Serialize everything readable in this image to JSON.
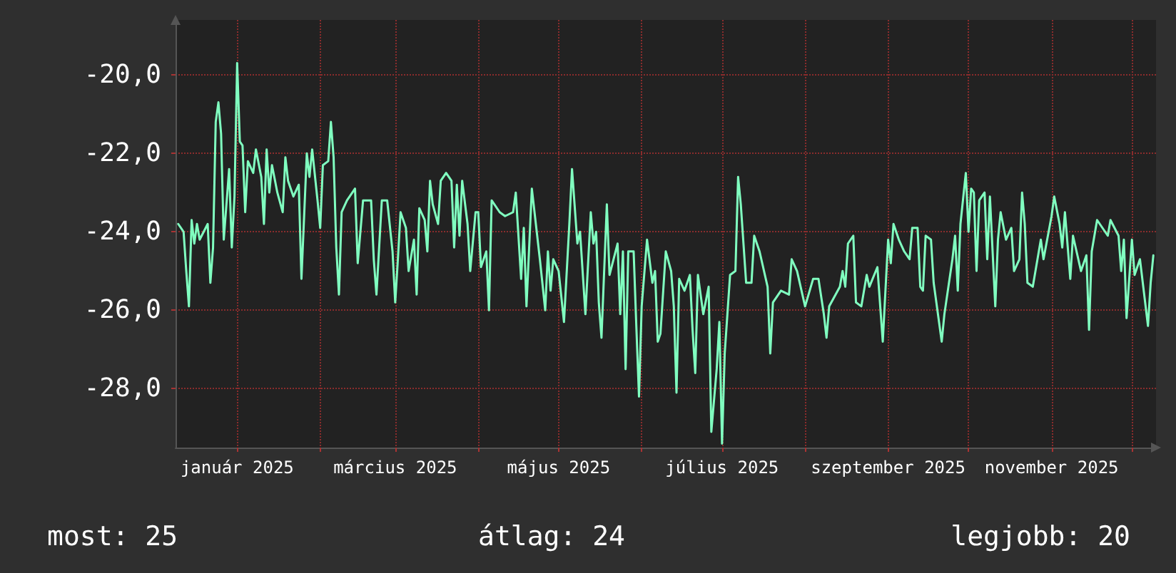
{
  "chart_data": {
    "type": "line",
    "x": [
      "2024-12-10",
      "2024-12-12",
      "2024-12-13",
      "2024-12-14",
      "2024-12-15",
      "2024-12-16",
      "2024-12-17",
      "2024-12-18",
      "2024-12-21",
      "2024-12-22",
      "2024-12-23",
      "2024-12-24",
      "2024-12-25",
      "2024-12-26",
      "2024-12-27",
      "2024-12-29",
      "2024-12-30",
      "2024-12-31",
      "2025-01-01",
      "2025-01-02",
      "2025-01-03",
      "2025-01-04",
      "2025-01-05",
      "2025-01-07",
      "2025-01-08",
      "2025-01-10",
      "2025-01-11",
      "2025-01-12",
      "2025-01-13",
      "2025-01-14",
      "2025-01-16",
      "2025-01-18",
      "2025-01-19",
      "2025-01-20",
      "2025-01-22",
      "2025-01-24",
      "2025-01-25",
      "2025-01-27",
      "2025-01-28",
      "2025-01-29",
      "2025-01-31",
      "2025-02-01",
      "2025-02-02",
      "2025-02-04",
      "2025-02-05",
      "2025-02-06",
      "2025-02-07",
      "2025-02-08",
      "2025-02-09",
      "2025-02-11",
      "2025-02-14",
      "2025-02-15",
      "2025-02-17",
      "2025-02-20",
      "2025-02-21",
      "2025-02-22",
      "2025-02-24",
      "2025-02-26",
      "2025-02-28",
      "2025-03-01",
      "2025-03-02",
      "2025-03-03",
      "2025-03-05",
      "2025-03-06",
      "2025-03-08",
      "2025-03-09",
      "2025-03-10",
      "2025-03-12",
      "2025-03-13",
      "2025-03-14",
      "2025-03-15",
      "2025-03-17",
      "2025-03-18",
      "2025-03-20",
      "2025-03-22",
      "2025-03-23",
      "2025-03-24",
      "2025-03-25",
      "2025-03-26",
      "2025-03-28",
      "2025-03-29",
      "2025-03-31",
      "2025-04-01",
      "2025-04-02",
      "2025-04-04",
      "2025-04-05",
      "2025-04-06",
      "2025-04-09",
      "2025-04-11",
      "2025-04-14",
      "2025-04-15",
      "2025-04-17",
      "2025-04-18",
      "2025-04-19",
      "2025-04-21",
      "2025-04-24",
      "2025-04-26",
      "2025-04-27",
      "2025-04-28",
      "2025-04-29",
      "2025-05-01",
      "2025-05-03",
      "2025-05-05",
      "2025-05-06",
      "2025-05-08",
      "2025-05-09",
      "2025-05-11",
      "2025-05-13",
      "2025-05-14",
      "2025-05-15",
      "2025-05-16",
      "2025-05-17",
      "2025-05-19",
      "2025-05-20",
      "2025-05-23",
      "2025-05-24",
      "2025-05-25",
      "2025-05-26",
      "2025-05-27",
      "2025-05-29",
      "2025-05-30",
      "2025-05-31",
      "2025-06-01",
      "2025-06-03",
      "2025-06-05",
      "2025-06-06",
      "2025-06-07",
      "2025-06-08",
      "2025-06-10",
      "2025-06-12",
      "2025-06-13",
      "2025-06-14",
      "2025-06-15",
      "2025-06-17",
      "2025-06-19",
      "2025-06-20",
      "2025-06-21",
      "2025-06-22",
      "2025-06-24",
      "2025-06-26",
      "2025-06-27",
      "2025-06-29",
      "2025-06-30",
      "2025-07-01",
      "2025-07-02",
      "2025-07-03",
      "2025-07-04",
      "2025-07-06",
      "2025-07-07",
      "2025-07-08",
      "2025-07-10",
      "2025-07-12",
      "2025-07-13",
      "2025-07-15",
      "2025-07-18",
      "2025-07-19",
      "2025-07-20",
      "2025-07-23",
      "2025-07-26",
      "2025-07-27",
      "2025-07-29",
      "2025-08-01",
      "2025-08-04",
      "2025-08-06",
      "2025-08-08",
      "2025-08-09",
      "2025-08-10",
      "2025-08-14",
      "2025-08-15",
      "2025-08-16",
      "2025-08-17",
      "2025-08-19",
      "2025-08-20",
      "2025-08-22",
      "2025-08-24",
      "2025-08-25",
      "2025-08-28",
      "2025-08-30",
      "2025-09-01",
      "2025-09-02",
      "2025-09-03",
      "2025-09-05",
      "2025-09-07",
      "2025-09-09",
      "2025-09-10",
      "2025-09-12",
      "2025-09-13",
      "2025-09-14",
      "2025-09-15",
      "2025-09-17",
      "2025-09-18",
      "2025-09-21",
      "2025-09-22",
      "2025-09-25",
      "2025-09-26",
      "2025-09-27",
      "2025-09-28",
      "2025-09-30",
      "2025-10-01",
      "2025-10-02",
      "2025-10-03",
      "2025-10-04",
      "2025-10-05",
      "2025-10-07",
      "2025-10-08",
      "2025-10-09",
      "2025-10-11",
      "2025-10-12",
      "2025-10-13",
      "2025-10-15",
      "2025-10-17",
      "2025-10-18",
      "2025-10-20",
      "2025-10-21",
      "2025-10-22",
      "2025-10-23",
      "2025-10-25",
      "2025-10-28",
      "2025-10-29",
      "2025-11-01",
      "2025-11-02",
      "2025-11-04",
      "2025-11-05",
      "2025-11-06",
      "2025-11-08",
      "2025-11-09",
      "2025-11-12",
      "2025-11-14",
      "2025-11-15",
      "2025-11-16",
      "2025-11-18",
      "2025-11-22",
      "2025-11-23",
      "2025-11-26",
      "2025-11-27",
      "2025-11-28",
      "2025-11-29",
      "2025-12-01",
      "2025-12-02",
      "2025-12-04",
      "2025-12-07",
      "2025-12-08",
      "2025-12-09"
    ],
    "series": [
      {
        "color": "#80ffc0",
        "values": [
          -23.8,
          -24.0,
          -25.0,
          -25.9,
          -23.7,
          -24.3,
          -23.8,
          -24.2,
          -23.8,
          -25.3,
          -24.4,
          -21.2,
          -20.7,
          -21.5,
          -24.2,
          -22.4,
          -24.4,
          -23.1,
          -19.7,
          -21.7,
          -21.8,
          -23.5,
          -22.2,
          -22.5,
          -21.9,
          -22.6,
          -23.8,
          -21.9,
          -23.0,
          -22.3,
          -23.0,
          -23.5,
          -22.1,
          -22.7,
          -23.1,
          -22.8,
          -25.2,
          -22.0,
          -22.6,
          -21.9,
          -23.2,
          -23.9,
          -22.3,
          -22.2,
          -21.2,
          -22.1,
          -24.4,
          -25.6,
          -23.5,
          -23.2,
          -22.9,
          -24.8,
          -23.2,
          -23.2,
          -24.7,
          -25.6,
          -23.2,
          -23.2,
          -24.5,
          -25.8,
          -24.7,
          -23.5,
          -23.9,
          -25.0,
          -24.2,
          -25.6,
          -23.4,
          -23.7,
          -24.5,
          -22.7,
          -23.3,
          -23.8,
          -22.7,
          -22.5,
          -22.7,
          -24.4,
          -22.8,
          -24.1,
          -22.7,
          -23.8,
          -25.0,
          -23.5,
          -23.5,
          -24.9,
          -24.5,
          -26.0,
          -23.2,
          -23.5,
          -23.6,
          -23.5,
          -23.0,
          -25.2,
          -23.9,
          -25.9,
          -22.9,
          -24.7,
          -26.0,
          -24.5,
          -25.5,
          -24.7,
          -25.0,
          -26.3,
          -23.8,
          -22.4,
          -24.3,
          -24.0,
          -26.1,
          -23.5,
          -24.3,
          -24.0,
          -25.8,
          -26.7,
          -23.3,
          -25.1,
          -24.3,
          -26.1,
          -24.5,
          -27.5,
          -24.5,
          -24.5,
          -26.4,
          -28.2,
          -25.9,
          -24.2,
          -25.3,
          -25.0,
          -26.8,
          -26.6,
          -24.5,
          -25.0,
          -25.9,
          -28.1,
          -25.2,
          -25.5,
          -25.1,
          -26.5,
          -27.6,
          -25.1,
          -26.1,
          -25.4,
          -29.1,
          -27.5,
          -26.3,
          -29.4,
          -27.1,
          -26.1,
          -25.1,
          -25.0,
          -22.6,
          -23.3,
          -25.3,
          -25.3,
          -24.1,
          -24.5,
          -25.4,
          -27.1,
          -25.8,
          -25.5,
          -25.6,
          -24.7,
          -25.0,
          -25.9,
          -25.2,
          -25.2,
          -26.1,
          -26.7,
          -25.9,
          -25.4,
          -25.0,
          -25.4,
          -24.3,
          -24.1,
          -25.8,
          -25.9,
          -25.1,
          -25.4,
          -24.9,
          -26.8,
          -24.2,
          -24.8,
          -23.8,
          -24.2,
          -24.5,
          -24.7,
          -23.9,
          -23.9,
          -25.4,
          -25.5,
          -24.1,
          -24.2,
          -25.3,
          -26.8,
          -26.1,
          -24.7,
          -24.1,
          -25.5,
          -23.8,
          -22.5,
          -24.0,
          -22.9,
          -23.0,
          -25.0,
          -23.2,
          -23.0,
          -24.7,
          -23.1,
          -25.9,
          -24.2,
          -23.5,
          -24.2,
          -23.9,
          -25.0,
          -24.7,
          -23.0,
          -23.8,
          -25.3,
          -25.4,
          -24.2,
          -24.7,
          -23.6,
          -23.1,
          -23.8,
          -24.4,
          -23.5,
          -25.2,
          -24.1,
          -25.0,
          -24.6,
          -26.5,
          -24.5,
          -23.7,
          -24.1,
          -23.7,
          -24.1,
          -25.0,
          -24.2,
          -26.2,
          -24.2,
          -25.1,
          -24.7,
          -26.4,
          -25.3,
          -24.6
        ]
      }
    ],
    "xlim": [
      "2024-12-09",
      "2025-12-10"
    ],
    "xticks": [
      {
        "value": "2025-01-01",
        "label": "január 2025"
      },
      {
        "value": "2025-02-01",
        "label": null
      },
      {
        "value": "2025-03-01",
        "label": "március 2025"
      },
      {
        "value": "2025-04-01",
        "label": null
      },
      {
        "value": "2025-05-01",
        "label": "május 2025"
      },
      {
        "value": "2025-06-01",
        "label": null
      },
      {
        "value": "2025-07-01",
        "label": "július 2025"
      },
      {
        "value": "2025-08-01",
        "label": null
      },
      {
        "value": "2025-09-01",
        "label": "szeptember 2025"
      },
      {
        "value": "2025-10-01",
        "label": null
      },
      {
        "value": "2025-11-01",
        "label": "november 2025"
      },
      {
        "value": "2025-12-01",
        "label": null
      }
    ],
    "ylim": [
      -29.5,
      -18.6
    ],
    "yticks": [
      {
        "value": -28,
        "label": "-28,0"
      },
      {
        "value": -26,
        "label": "-26,0"
      },
      {
        "value": -24,
        "label": "-24,0"
      },
      {
        "value": -22,
        "label": "-22,0"
      },
      {
        "value": -20,
        "label": "-20,0"
      }
    ],
    "grid": true,
    "marker": "none",
    "line_style": "solid",
    "annotations": [
      "most: 25",
      "átlag: 24",
      "legjobb: 20"
    ]
  }
}
